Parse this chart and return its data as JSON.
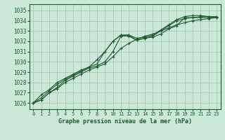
{
  "title": "Graphe pression niveau de la mer (hPa)",
  "bg_color": "#cce8d8",
  "grid_color": "#aaccb8",
  "line_color": "#1e5c30",
  "text_color": "#1a5c2e",
  "xlim": [
    -0.5,
    23.5
  ],
  "ylim": [
    1025.4,
    1035.6
  ],
  "yticks": [
    1026,
    1027,
    1028,
    1029,
    1030,
    1031,
    1032,
    1033,
    1034,
    1035
  ],
  "xticks": [
    0,
    1,
    2,
    3,
    4,
    5,
    6,
    7,
    8,
    9,
    10,
    11,
    12,
    13,
    14,
    15,
    16,
    17,
    18,
    19,
    20,
    21,
    22,
    23
  ],
  "series": [
    [
      1026.0,
      1026.3,
      1027.0,
      1027.5,
      1028.2,
      1028.6,
      1029.0,
      1029.4,
      1029.6,
      1030.0,
      1031.0,
      1032.5,
      1032.5,
      1032.1,
      1032.3,
      1032.4,
      1032.7,
      1033.2,
      1033.5,
      1034.3,
      1034.3,
      1034.3,
      1034.3,
      1034.3
    ],
    [
      1026.0,
      1026.5,
      1027.2,
      1027.8,
      1028.3,
      1028.7,
      1029.1,
      1029.5,
      1029.8,
      1031.0,
      1032.0,
      1032.6,
      1032.6,
      1032.1,
      1032.3,
      1032.5,
      1033.0,
      1033.5,
      1034.0,
      1034.2,
      1034.3,
      1034.4,
      1034.4,
      1034.3
    ],
    [
      1026.0,
      1026.8,
      1027.3,
      1028.0,
      1028.4,
      1028.8,
      1029.2,
      1029.5,
      1030.2,
      1031.0,
      1032.0,
      1032.6,
      1032.6,
      1032.3,
      1032.4,
      1032.6,
      1033.1,
      1033.6,
      1034.1,
      1034.4,
      1034.5,
      1034.5,
      1034.4,
      1034.4
    ],
    [
      1026.0,
      1026.3,
      1027.0,
      1027.4,
      1028.0,
      1028.4,
      1028.8,
      1029.2,
      1029.5,
      1029.8,
      1030.5,
      1031.3,
      1031.8,
      1032.2,
      1032.5,
      1032.7,
      1033.0,
      1033.3,
      1033.6,
      1033.8,
      1034.0,
      1034.1,
      1034.2,
      1034.3
    ]
  ]
}
